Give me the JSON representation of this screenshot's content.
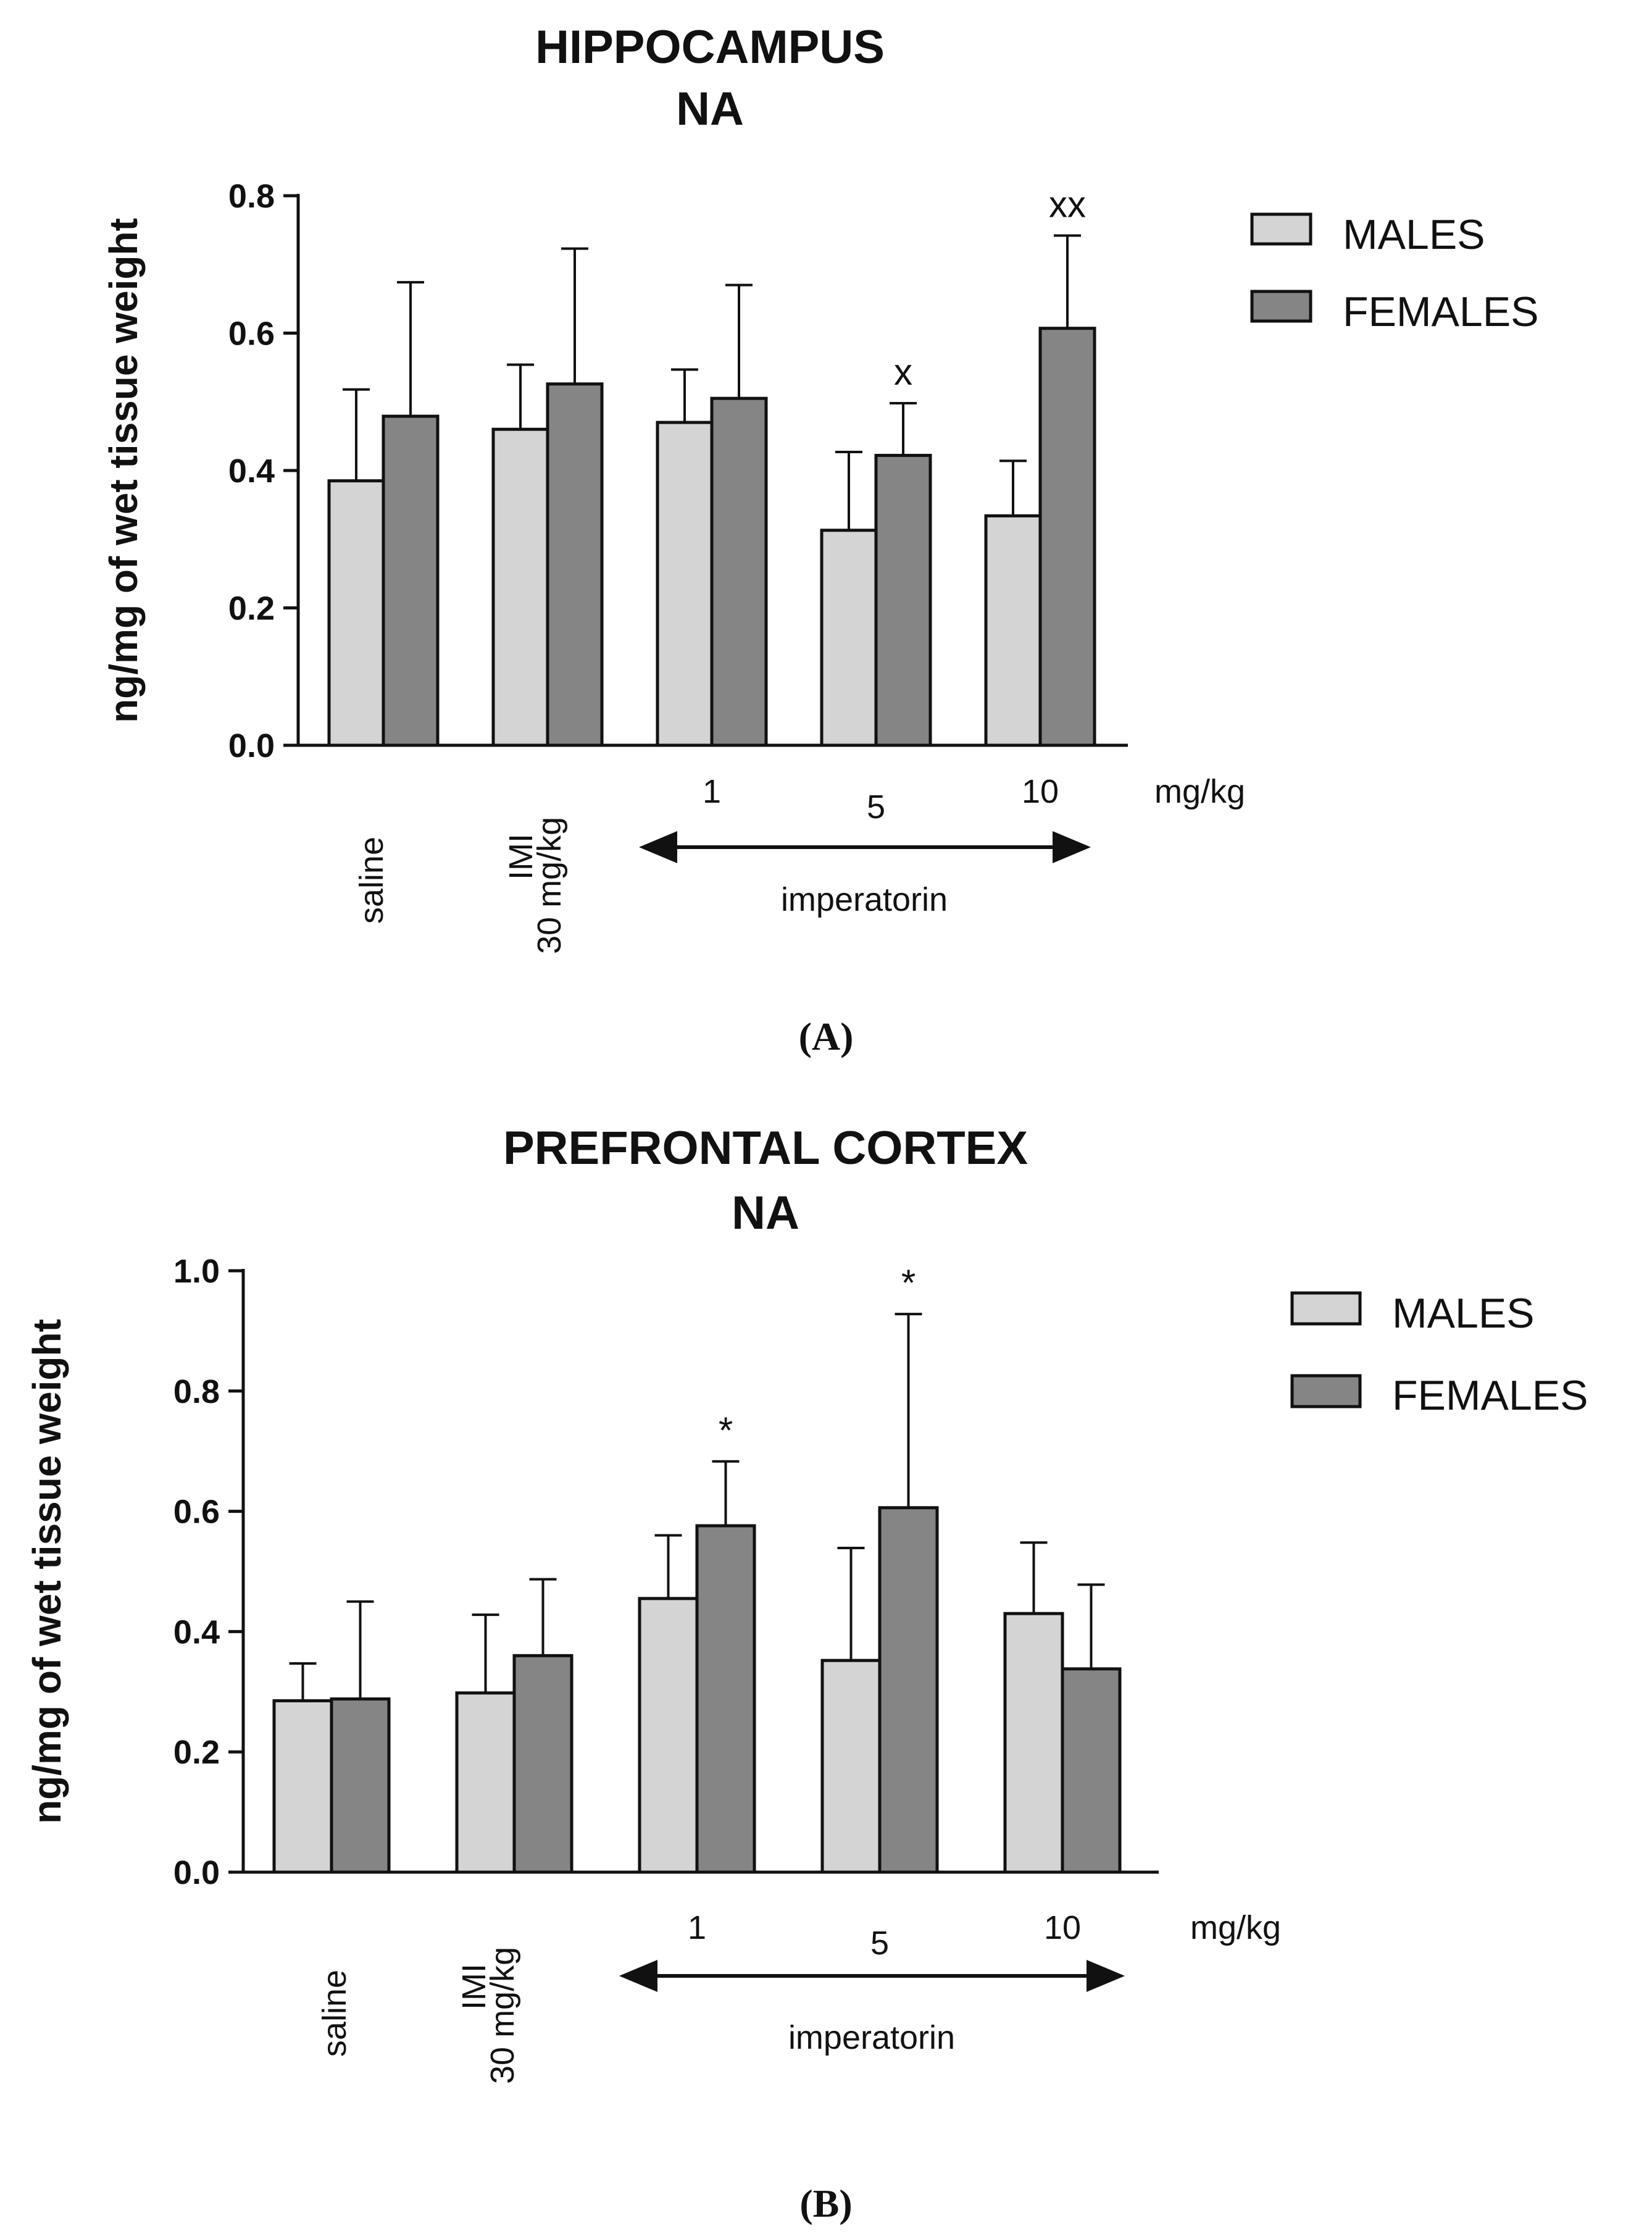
{
  "chart_data": [
    {
      "type": "bar",
      "panel": "(A)",
      "title": [
        "HIPPOCAMPUS",
        "NA"
      ],
      "ylabel": "ng/mg of wet tissue weight",
      "ylim": [
        0,
        0.8
      ],
      "yticks": [
        0.0,
        0.2,
        0.4,
        0.6,
        0.8
      ],
      "ytick_labels": [
        "0.0",
        "0.2",
        "0.4",
        "0.6",
        "0.8"
      ],
      "categories": [
        "saline",
        "IMI 30 mg/kg",
        "1",
        "5",
        "10"
      ],
      "category_lines": [
        [
          "saline"
        ],
        [
          "IMI",
          "30 mg/kg"
        ],
        [
          "1"
        ],
        [
          "5"
        ],
        [
          "10"
        ]
      ],
      "unit_label": "mg/kg",
      "group_label": "imperatorin",
      "series": [
        {
          "name": "MALES",
          "color": "#d4d4d4",
          "values": [
            0.385,
            0.46,
            0.47,
            0.313,
            0.334
          ],
          "errors": [
            0.133,
            0.094,
            0.077,
            0.114,
            0.08
          ]
        },
        {
          "name": "FEMALES",
          "color": "#858585",
          "values": [
            0.479,
            0.526,
            0.505,
            0.422,
            0.607
          ],
          "errors": [
            0.195,
            0.197,
            0.165,
            0.076,
            0.135
          ]
        }
      ],
      "annotations": [
        {
          "text": "x",
          "category": 3,
          "series": 1
        },
        {
          "text": "xx",
          "category": 4,
          "series": 1
        }
      ],
      "legend": [
        "MALES",
        "FEMALES"
      ],
      "legend_position": "top-right"
    },
    {
      "type": "bar",
      "panel": "(B)",
      "title": [
        "PREFRONTAL CORTEX",
        "NA"
      ],
      "ylabel": "ng/mg of wet tissue weight",
      "ylim": [
        0,
        1.0
      ],
      "yticks": [
        0.0,
        0.2,
        0.4,
        0.6,
        0.8,
        1.0
      ],
      "ytick_labels": [
        "0.0",
        "0.2",
        "0.4",
        "0.6",
        "0.8",
        "1.0"
      ],
      "categories": [
        "saline",
        "IMI 30 mg/kg",
        "1",
        "5",
        "10"
      ],
      "category_lines": [
        [
          "saline"
        ],
        [
          "IMI",
          "30 mg/kg"
        ],
        [
          "1"
        ],
        [
          "5"
        ],
        [
          "10"
        ]
      ],
      "unit_label": "mg/kg",
      "group_label": "imperatorin",
      "series": [
        {
          "name": "MALES",
          "color": "#d4d4d4",
          "values": [
            0.285,
            0.298,
            0.455,
            0.352,
            0.43
          ],
          "errors": [
            0.062,
            0.13,
            0.105,
            0.187,
            0.118
          ]
        },
        {
          "name": "FEMALES",
          "color": "#858585",
          "values": [
            0.288,
            0.36,
            0.576,
            0.606,
            0.338
          ],
          "errors": [
            0.162,
            0.127,
            0.107,
            0.322,
            0.14
          ]
        }
      ],
      "annotations": [
        {
          "text": "*",
          "category": 2,
          "series": 1
        },
        {
          "text": "*",
          "category": 3,
          "series": 1
        }
      ],
      "legend": [
        "MALES",
        "FEMALES"
      ],
      "legend_position": "top-right"
    }
  ]
}
